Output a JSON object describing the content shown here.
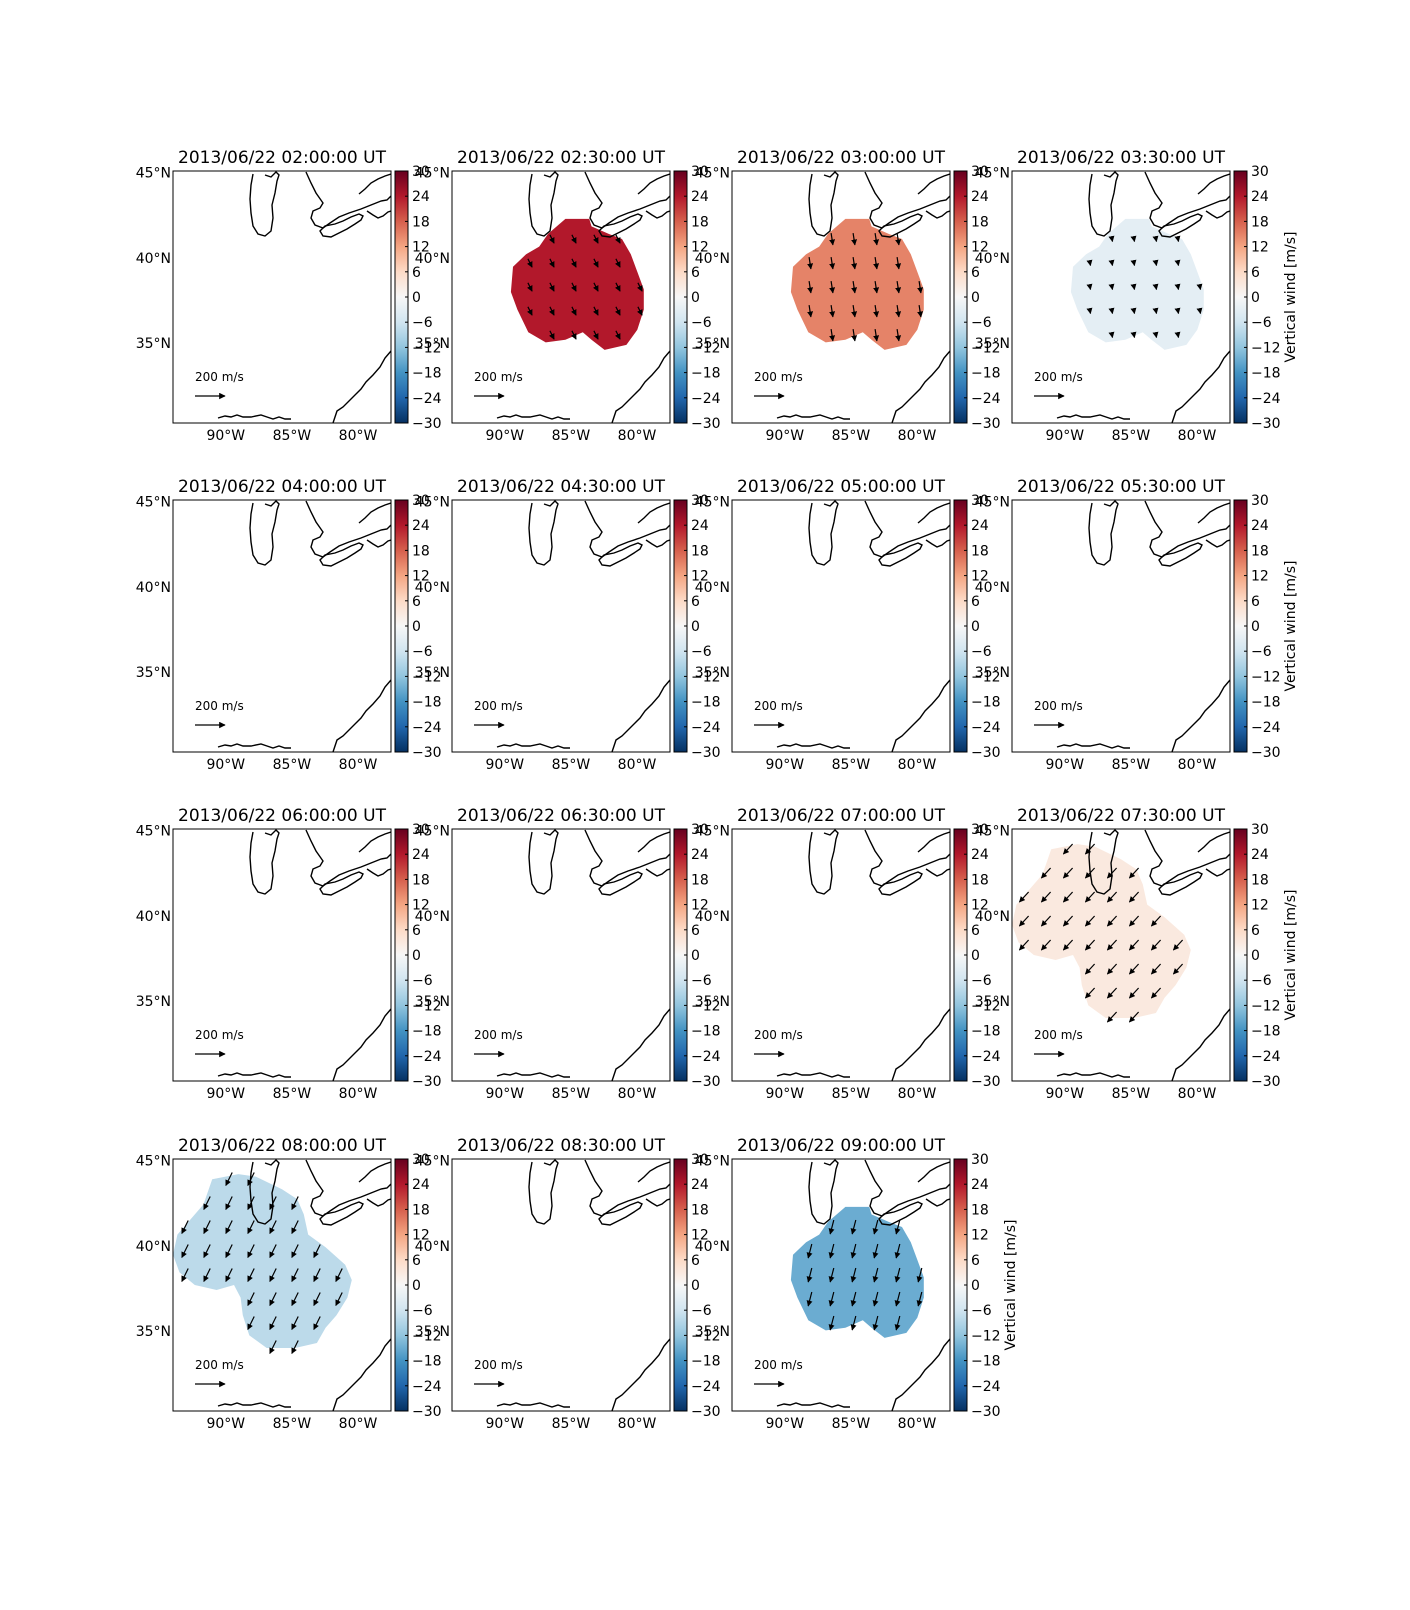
{
  "chart_data": {
    "type": "map-panels",
    "cbar": {
      "ticks": [
        30,
        24,
        18,
        12,
        6,
        0,
        -6,
        -12,
        -18,
        -24,
        -30
      ],
      "label": "Vertical wind [m/s]",
      "range": [
        -30,
        30
      ]
    },
    "lat_ticks": [
      "45°N",
      "40°N",
      "35°N"
    ],
    "lon_ticks": [
      "90°W",
      "85°W",
      "80°W"
    ],
    "lat_values": [
      45,
      40,
      35
    ],
    "lon_values": [
      -90,
      -85,
      -80
    ],
    "extent": {
      "lon": [
        -94,
        -77.5
      ],
      "lat": [
        30.3,
        45.1
      ]
    },
    "scale_label": "200 m/s",
    "panels": [
      {
        "title": "2013/06/22 02:00:00 UT",
        "value": null,
        "blob": null,
        "arrow": null,
        "show_cbar_label": false
      },
      {
        "title": "2013/06/22 02:30:00 UT",
        "value": 24,
        "blob": "A",
        "arrow": [
          0.5,
          -1,
          0.55
        ],
        "show_cbar_label": false
      },
      {
        "title": "2013/06/22 03:00:00 UT",
        "value": 15,
        "blob": "A",
        "arrow": [
          0.15,
          -1,
          0.7
        ],
        "show_cbar_label": false
      },
      {
        "title": "2013/06/22 03:30:00 UT",
        "value": -3,
        "blob": "A",
        "arrow": [
          0.2,
          -1,
          0.3
        ],
        "show_cbar_label": true
      },
      {
        "title": "2013/06/22 04:00:00 UT",
        "value": null,
        "blob": null,
        "arrow": null,
        "show_cbar_label": false
      },
      {
        "title": "2013/06/22 04:30:00 UT",
        "value": null,
        "blob": null,
        "arrow": null,
        "show_cbar_label": false
      },
      {
        "title": "2013/06/22 05:00:00 UT",
        "value": null,
        "blob": null,
        "arrow": null,
        "show_cbar_label": false
      },
      {
        "title": "2013/06/22 05:30:00 UT",
        "value": null,
        "blob": null,
        "arrow": null,
        "show_cbar_label": true
      },
      {
        "title": "2013/06/22 06:00:00 UT",
        "value": null,
        "blob": null,
        "arrow": null,
        "show_cbar_label": false
      },
      {
        "title": "2013/06/22 06:30:00 UT",
        "value": null,
        "blob": null,
        "arrow": null,
        "show_cbar_label": false
      },
      {
        "title": "2013/06/22 07:00:00 UT",
        "value": null,
        "blob": null,
        "arrow": null,
        "show_cbar_label": false
      },
      {
        "title": "2013/06/22 07:30:00 UT",
        "value": 3,
        "blob": "B",
        "arrow": [
          -0.7,
          -0.75,
          0.8
        ],
        "show_cbar_label": true
      },
      {
        "title": "2013/06/22 08:00:00 UT",
        "value": -8,
        "blob": "B",
        "arrow": [
          -0.45,
          -0.9,
          0.85
        ],
        "show_cbar_label": false
      },
      {
        "title": "2013/06/22 08:30:00 UT",
        "value": null,
        "blob": null,
        "arrow": null,
        "show_cbar_label": false
      },
      {
        "title": "2013/06/22 09:00:00 UT",
        "value": -15,
        "blob": "A",
        "arrow": [
          -0.25,
          -1,
          0.85
        ],
        "show_cbar_label": true
      }
    ]
  }
}
